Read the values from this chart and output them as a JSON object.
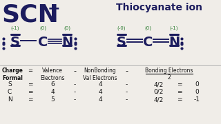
{
  "bg_color": "#f0ede8",
  "title_scn": "SCN",
  "title_charge": "−",
  "title_right": "Thiocyanate ion",
  "scn_color": "#1c1c5e",
  "green_color": "#2e7d32",
  "rows": [
    [
      "S",
      "=",
      "6",
      "-",
      "4",
      "-",
      "4/2",
      "=",
      "0"
    ],
    [
      "C",
      "=",
      "4",
      "-",
      "4",
      "-",
      "0/2",
      "=",
      "0"
    ],
    [
      "N",
      "=",
      "5",
      "-",
      "4",
      "-",
      "4/2",
      "=",
      "-1"
    ]
  ]
}
